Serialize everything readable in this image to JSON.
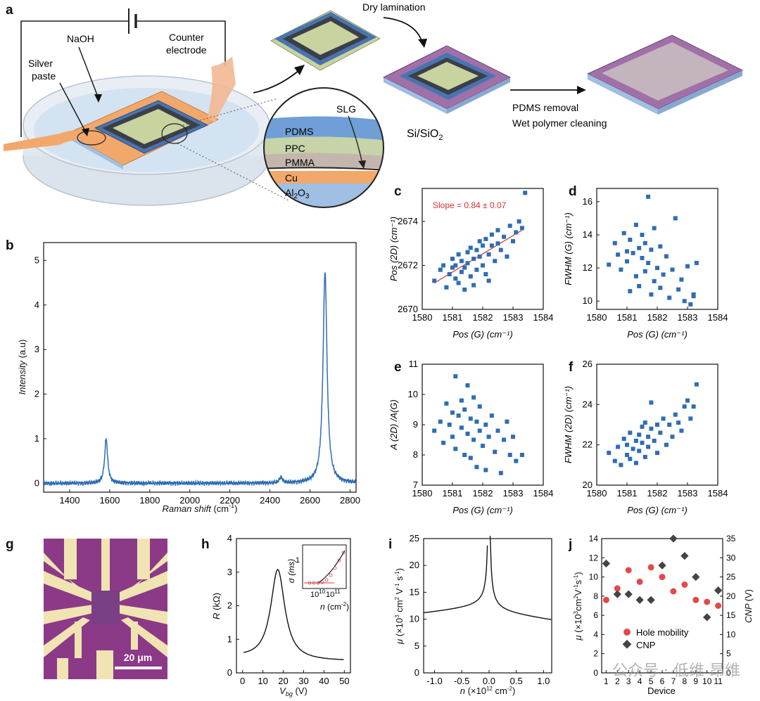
{
  "figure": {
    "panels": [
      "a",
      "b",
      "c",
      "d",
      "e",
      "f",
      "g",
      "h",
      "i",
      "j"
    ]
  },
  "panel_a": {
    "labels": {
      "naoh": "NaOH",
      "silver": "Silver",
      "paste": "paste",
      "counter": "Counter",
      "electrode": "electrode",
      "dry": "Dry lamination",
      "substrate": "Si/SiO2",
      "pdms_removal": "PDMS removal",
      "wet": "Wet polymer cleaning",
      "slg": "SLG"
    },
    "layers": [
      {
        "name": "PDMS",
        "color": "#6f9fd6"
      },
      {
        "name": "PPC",
        "color": "#c7d3a8"
      },
      {
        "name": "PMMA",
        "color": "#c4b6ad"
      },
      {
        "name": "Cu",
        "color": "#f3a86b"
      },
      {
        "name": "Al2O3",
        "color": "#9fbfe3"
      }
    ]
  },
  "chart_data": [
    {
      "id": "b",
      "type": "line",
      "xlabel": "Raman shift (cm-1)",
      "ylabel": "Intensity (a.u)",
      "xlim": [
        1270,
        2830
      ],
      "ylim": [
        -0.2,
        5.4
      ],
      "xticks": [
        1400,
        1600,
        1800,
        2000,
        2200,
        2400,
        2600,
        2800
      ],
      "yticks": [
        0,
        1,
        2,
        3,
        4,
        5
      ],
      "peaks": [
        {
          "pos": 1582,
          "height": 1.0,
          "width": 9
        },
        {
          "pos": 2455,
          "height": 0.13,
          "width": 9
        },
        {
          "pos": 2675,
          "height": 4.75,
          "width": 12
        }
      ]
    },
    {
      "id": "c",
      "type": "scatter",
      "xlabel": "Pos (G) (cm-1)",
      "ylabel": "Pos (2D) (cm-1)",
      "xlim": [
        1580,
        1584
      ],
      "ylim": [
        2670,
        2675.5
      ],
      "xticks": [
        1580,
        1581,
        1582,
        1583,
        1584
      ],
      "yticks": [
        2670,
        2672,
        2674
      ],
      "annotation": "Slope = 0.84 ± 0.07",
      "fit": {
        "x": [
          1580.4,
          1583.3
        ],
        "y": [
          2671.2,
          2673.6
        ]
      },
      "points": [
        [
          1580.4,
          2671.3
        ],
        [
          1580.6,
          2671.8
        ],
        [
          1580.7,
          2672.0
        ],
        [
          1580.8,
          2671.0
        ],
        [
          1580.9,
          2671.6
        ],
        [
          1581.0,
          2671.9
        ],
        [
          1581.0,
          2672.3
        ],
        [
          1581.1,
          2671.4
        ],
        [
          1581.1,
          2672.0
        ],
        [
          1581.2,
          2671.2
        ],
        [
          1581.2,
          2672.5
        ],
        [
          1581.3,
          2671.7
        ],
        [
          1581.3,
          2672.2
        ],
        [
          1581.4,
          2670.9
        ],
        [
          1581.4,
          2671.9
        ],
        [
          1581.5,
          2672.6
        ],
        [
          1581.5,
          2672.1
        ],
        [
          1581.6,
          2671.5
        ],
        [
          1581.6,
          2672.8
        ],
        [
          1581.7,
          2672.3
        ],
        [
          1581.7,
          2671.1
        ],
        [
          1581.8,
          2672.7
        ],
        [
          1581.8,
          2671.8
        ],
        [
          1581.9,
          2672.4
        ],
        [
          1581.9,
          2673.1
        ],
        [
          1582.0,
          2672.0
        ],
        [
          1582.0,
          2672.9
        ],
        [
          1582.1,
          2671.6
        ],
        [
          1582.1,
          2673.2
        ],
        [
          1582.2,
          2672.5
        ],
        [
          1582.2,
          2671.3
        ],
        [
          1582.3,
          2672.9
        ],
        [
          1582.3,
          2673.4
        ],
        [
          1582.4,
          2672.2
        ],
        [
          1582.5,
          2673.0
        ],
        [
          1582.5,
          2673.6
        ],
        [
          1582.6,
          2672.7
        ],
        [
          1582.7,
          2673.3
        ],
        [
          1582.8,
          2672.4
        ],
        [
          1582.9,
          2673.8
        ],
        [
          1583.0,
          2673.1
        ],
        [
          1583.1,
          2673.5
        ],
        [
          1583.2,
          2674.0
        ],
        [
          1583.3,
          2673.7
        ],
        [
          1583.4,
          2675.3
        ]
      ]
    },
    {
      "id": "d",
      "type": "scatter",
      "xlabel": "Pos (G) (cm-1)",
      "ylabel": "FWHM (G) (cm-1)",
      "xlim": [
        1580,
        1584
      ],
      "ylim": [
        9.5,
        16.8
      ],
      "xticks": [
        1580,
        1581,
        1582,
        1583,
        1584
      ],
      "yticks": [
        10,
        12,
        14,
        16
      ],
      "points": [
        [
          1580.4,
          12.2
        ],
        [
          1580.6,
          13.5
        ],
        [
          1580.7,
          12.8
        ],
        [
          1580.8,
          11.9
        ],
        [
          1580.9,
          14.1
        ],
        [
          1581.0,
          13.0
        ],
        [
          1581.0,
          12.4
        ],
        [
          1581.1,
          10.6
        ],
        [
          1581.1,
          13.7
        ],
        [
          1581.2,
          12.9
        ],
        [
          1581.3,
          14.6
        ],
        [
          1581.3,
          11.5
        ],
        [
          1581.4,
          13.2
        ],
        [
          1581.4,
          10.9
        ],
        [
          1581.5,
          12.6
        ],
        [
          1581.5,
          14.0
        ],
        [
          1581.6,
          11.8
        ],
        [
          1581.6,
          13.5
        ],
        [
          1581.7,
          16.3
        ],
        [
          1581.7,
          12.3
        ],
        [
          1581.8,
          10.4
        ],
        [
          1581.8,
          13.1
        ],
        [
          1581.9,
          11.2
        ],
        [
          1581.9,
          14.4
        ],
        [
          1582.0,
          12.0
        ],
        [
          1582.1,
          10.8
        ],
        [
          1582.1,
          13.3
        ],
        [
          1582.2,
          11.6
        ],
        [
          1582.3,
          12.7
        ],
        [
          1582.4,
          10.2
        ],
        [
          1582.5,
          11.9
        ],
        [
          1582.6,
          15.0
        ],
        [
          1582.7,
          10.7
        ],
        [
          1582.8,
          11.3
        ],
        [
          1582.9,
          10.0
        ],
        [
          1583.0,
          12.1
        ],
        [
          1583.1,
          9.8
        ],
        [
          1583.2,
          10.3
        ],
        [
          1583.3,
          12.3
        ],
        [
          1583.2,
          10.4
        ]
      ]
    },
    {
      "id": "e",
      "type": "scatter",
      "xlabel": "Pos (G) (cm-1)",
      "ylabel": "A (2D) /A(G)",
      "xlim": [
        1580,
        1584
      ],
      "ylim": [
        7,
        11
      ],
      "xticks": [
        1580,
        1581,
        1582,
        1583,
        1584
      ],
      "yticks": [
        7,
        8,
        9,
        10,
        11
      ],
      "points": [
        [
          1580.4,
          8.8
        ],
        [
          1580.6,
          9.1
        ],
        [
          1580.7,
          8.4
        ],
        [
          1580.8,
          9.7
        ],
        [
          1580.9,
          9.0
        ],
        [
          1581.0,
          8.6
        ],
        [
          1581.0,
          9.4
        ],
        [
          1581.1,
          10.6
        ],
        [
          1581.1,
          8.2
        ],
        [
          1581.2,
          9.3
        ],
        [
          1581.3,
          8.9
        ],
        [
          1581.3,
          9.8
        ],
        [
          1581.4,
          8.0
        ],
        [
          1581.4,
          9.5
        ],
        [
          1581.5,
          10.3
        ],
        [
          1581.5,
          8.7
        ],
        [
          1581.6,
          9.2
        ],
        [
          1581.6,
          7.9
        ],
        [
          1581.7,
          9.9
        ],
        [
          1581.7,
          8.5
        ],
        [
          1581.8,
          9.1
        ],
        [
          1581.8,
          7.6
        ],
        [
          1581.9,
          8.8
        ],
        [
          1581.9,
          9.6
        ],
        [
          1582.0,
          8.3
        ],
        [
          1582.1,
          9.0
        ],
        [
          1582.1,
          7.5
        ],
        [
          1582.2,
          8.6
        ],
        [
          1582.3,
          9.3
        ],
        [
          1582.4,
          8.1
        ],
        [
          1582.5,
          8.8
        ],
        [
          1582.6,
          7.4
        ],
        [
          1582.7,
          8.5
        ],
        [
          1582.8,
          9.1
        ],
        [
          1582.9,
          8.0
        ],
        [
          1583.0,
          8.6
        ],
        [
          1583.1,
          7.8
        ],
        [
          1583.3,
          8.0
        ]
      ]
    },
    {
      "id": "f",
      "type": "scatter",
      "xlabel": "Pos (G) (cm-1)",
      "ylabel": "FWHM (2D) (cm-1)",
      "xlim": [
        1580,
        1584
      ],
      "ylim": [
        20,
        26
      ],
      "xticks": [
        1580,
        1581,
        1582,
        1583,
        1584
      ],
      "yticks": [
        20,
        22,
        24,
        26
      ],
      "points": [
        [
          1580.4,
          21.6
        ],
        [
          1580.6,
          21.2
        ],
        [
          1580.7,
          21.9
        ],
        [
          1580.8,
          21.0
        ],
        [
          1580.9,
          22.3
        ],
        [
          1581.0,
          21.5
        ],
        [
          1581.0,
          22.0
        ],
        [
          1581.1,
          21.3
        ],
        [
          1581.1,
          22.6
        ],
        [
          1581.2,
          21.8
        ],
        [
          1581.3,
          22.2
        ],
        [
          1581.3,
          21.1
        ],
        [
          1581.4,
          22.5
        ],
        [
          1581.4,
          21.7
        ],
        [
          1581.5,
          22.9
        ],
        [
          1581.5,
          22.1
        ],
        [
          1581.6,
          21.4
        ],
        [
          1581.6,
          23.1
        ],
        [
          1581.7,
          22.4
        ],
        [
          1581.7,
          21.9
        ],
        [
          1581.8,
          22.8
        ],
        [
          1581.8,
          24.1
        ],
        [
          1581.9,
          22.2
        ],
        [
          1582.0,
          23.0
        ],
        [
          1582.0,
          21.6
        ],
        [
          1582.1,
          22.6
        ],
        [
          1582.2,
          23.3
        ],
        [
          1582.3,
          22.0
        ],
        [
          1582.4,
          23.0
        ],
        [
          1582.5,
          22.4
        ],
        [
          1582.6,
          23.5
        ],
        [
          1582.7,
          23.1
        ],
        [
          1582.8,
          22.7
        ],
        [
          1582.9,
          23.9
        ],
        [
          1583.0,
          24.2
        ],
        [
          1583.1,
          23.3
        ],
        [
          1583.2,
          23.9
        ],
        [
          1583.3,
          25.0
        ]
      ]
    },
    {
      "id": "h",
      "type": "line",
      "xlabel": "Vbg (V)",
      "ylabel": "R (kΩ)",
      "xlim": [
        -3,
        53
      ],
      "ylim": [
        0,
        4
      ],
      "xticks": [
        0,
        10,
        20,
        30,
        40,
        50
      ],
      "yticks": [
        0,
        1,
        2,
        3,
        4
      ],
      "peak": {
        "x": 17.3,
        "height": 3.08,
        "base": 0.35,
        "width": 4.2
      },
      "inset": {
        "ylabel": "σ (ms)",
        "xlabel": "n (cm-2)",
        "xticks": [
          "10^10",
          "10^11"
        ],
        "yticks": [
          "1"
        ]
      }
    },
    {
      "id": "i",
      "type": "line",
      "xlabel": "n (×10^12 cm-2)",
      "ylabel": "μ (×10^3 cm2 V-1 s-1)",
      "xlim": [
        -1.2,
        1.15
      ],
      "ylim": [
        0,
        25
      ],
      "xticks": [
        -1.0,
        -0.5,
        0.0,
        0.5,
        1.0
      ],
      "yticks": [
        0,
        5,
        10,
        15,
        20,
        25
      ]
    },
    {
      "id": "j",
      "type": "scatter",
      "xlabel": "Device",
      "ylabel": "μ (×10^3cm2V-1s-1)",
      "y2label": "CNP (V)",
      "categories": [
        1,
        2,
        3,
        4,
        5,
        6,
        7,
        8,
        9,
        10,
        11
      ],
      "ylim": [
        0,
        14
      ],
      "y2lim": [
        0,
        35
      ],
      "yticks": [
        0,
        2,
        4,
        6,
        8,
        10,
        12,
        14
      ],
      "y2ticks": [
        0,
        5,
        10,
        15,
        20,
        25,
        30,
        35
      ],
      "series": [
        {
          "name": "Hole mobility",
          "color": "#e24a4a",
          "values": [
            7.6,
            8.8,
            10.7,
            9.5,
            11.0,
            10.0,
            8.5,
            9.2,
            7.6,
            7.4,
            7.0
          ]
        },
        {
          "name": "CNP",
          "color": "#444444",
          "values": [
            28.5,
            20.5,
            20.5,
            19.0,
            19.0,
            28.0,
            35.0,
            30.5,
            25.0,
            14.5,
            21.5
          ]
        }
      ]
    }
  ],
  "panel_g": {
    "scalebar": "20 μm"
  },
  "watermark": "公众号 · 低维 昂维"
}
